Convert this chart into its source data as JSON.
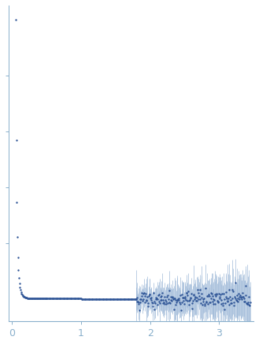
{
  "title": "",
  "xlabel": "",
  "ylabel": "",
  "xlim": [
    -0.05,
    3.5
  ],
  "dot_color": "#2f5597",
  "error_color": "#9db8d8",
  "background_color": "#ffffff",
  "axis_color": "#8ab0cc",
  "tick_color": "#8ab0cc",
  "label_color": "#8ab0cc",
  "xticks": [
    0,
    1,
    2,
    3
  ],
  "dot_size": 3.0,
  "figsize": [
    3.29,
    4.37
  ],
  "dpi": 100
}
